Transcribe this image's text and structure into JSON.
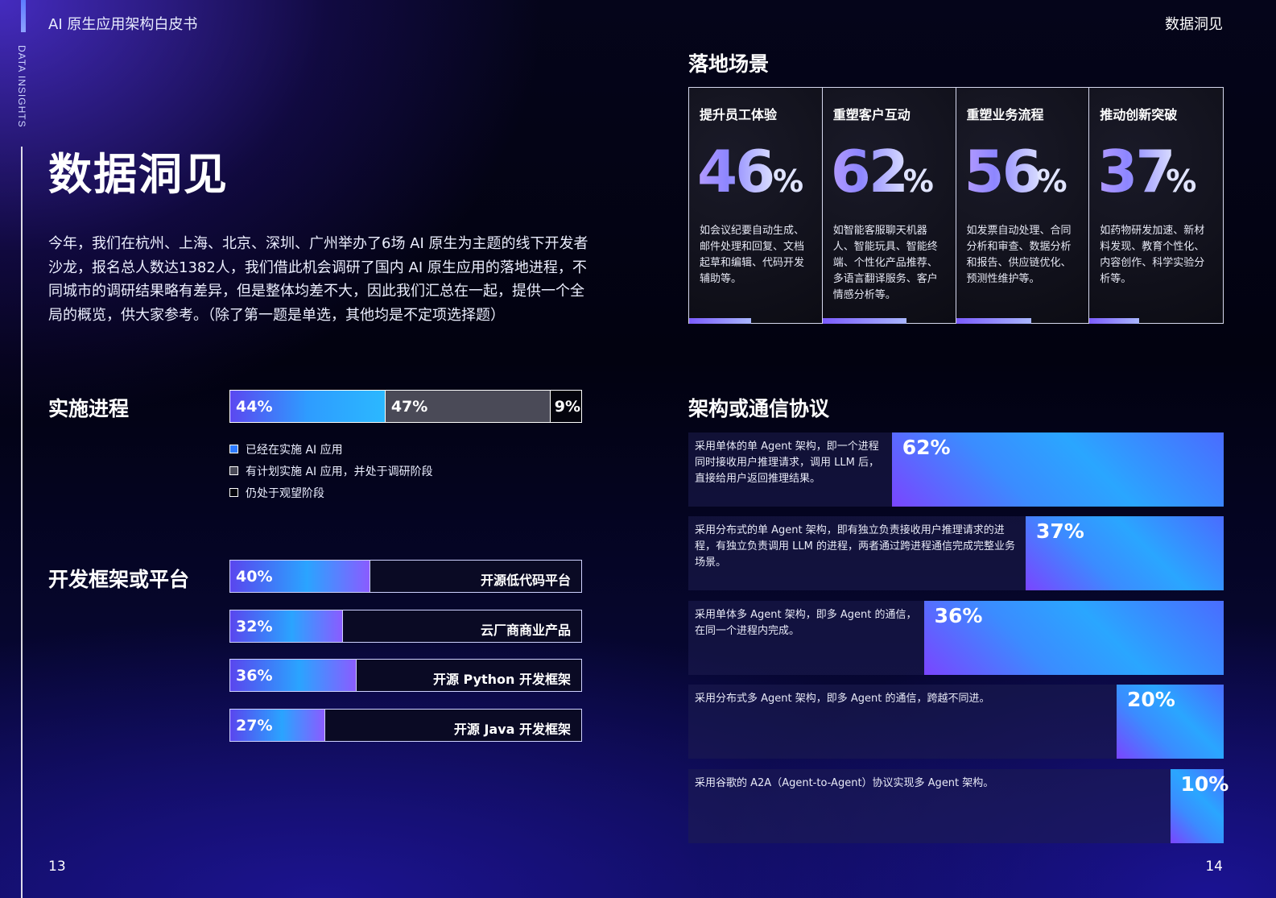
{
  "header": {
    "doc_title": "AI 原生应用架构白皮书",
    "section_right": "数据洞见",
    "side_label": "DATA INSIGHTS"
  },
  "left": {
    "title": "数据洞见",
    "intro": "今年，我们在杭州、上海、北京、深圳、广州举办了6场 AI 原生为主题的线下开发者沙龙，报名总人数达1382人，我们借此机会调研了国内 AI 原生应用的落地进程，不同城市的调研结果略有差异，但是整体均差不大，因此我们汇总在一起，提供一个全局的概览，供大家参考。（除了第一题是单选，其他均是不定项选择题）",
    "progress": {
      "title": "实施进程",
      "segments": [
        {
          "label": "44%",
          "value": 44,
          "legend": "已经在实施 AI 应用",
          "color": "#2e7bff"
        },
        {
          "label": "47%",
          "value": 47,
          "legend": "有计划实施 AI 应用，并处于调研阶段",
          "color": "#4a4a57"
        },
        {
          "label": "9%",
          "value": 9,
          "legend": "仍处于观望阶段",
          "color": "#04040d"
        }
      ]
    },
    "frameworks": {
      "title": "开发框架或平台",
      "items": [
        {
          "pct": "40%",
          "value": 40,
          "label": "开源低代码平台"
        },
        {
          "pct": "32%",
          "value": 32,
          "label": "云厂商商业产品"
        },
        {
          "pct": "36%",
          "value": 36,
          "label": "开源 Python 开发框架"
        },
        {
          "pct": "27%",
          "value": 27,
          "label": "开源 Java 开发框架"
        }
      ]
    },
    "page_number": "13"
  },
  "right": {
    "scenarios": {
      "title": "落地场景",
      "cards": [
        {
          "title": "提升员工体验",
          "number": "46",
          "unit": "%",
          "desc": "如会议纪要自动生成、邮件处理和回复、文档起草和编辑、代码开发辅助等。"
        },
        {
          "title": "重塑客户互动",
          "number": "62",
          "unit": "%",
          "desc": "如智能客服聊天机器人、智能玩具、智能终端、个性化产品推荐、多语言翻译服务、客户情感分析等。"
        },
        {
          "title": "重塑业务流程",
          "number": "56",
          "unit": "%",
          "desc": "如发票自动处理、合同分析和审查、数据分析和报告、供应链优化、预测性维护等。"
        },
        {
          "title": "推动创新突破",
          "number": "37",
          "unit": "%",
          "desc": "如药物研发加速、新材料发现、教育个性化、内容创作、科学实验分析等。"
        }
      ]
    },
    "protocols": {
      "title": "架构或通信协议",
      "items": [
        {
          "desc": "采用单体的单 Agent 架构，即一个进程\n同时接收用户推理请求，调用 LLM 后，\n直接给用户返回推理结果。",
          "pct": "62%",
          "value": 62
        },
        {
          "desc": "采用分布式的单 Agent 架构，即有独立负责接收用户推理请求的进\n程，有独立负责调用 LLM 的进程，两者通过跨进程通信完成完整业务\n场景。",
          "pct": "37%",
          "value": 37
        },
        {
          "desc": "采用单体多 Agent 架构，即多 Agent 的通信，\n在同一个进程内完成。",
          "pct": "36%",
          "value": 36
        },
        {
          "desc": "采用分布式多 Agent 架构，即多 Agent 的通信，跨越不同进。",
          "pct": "20%",
          "value": 20
        },
        {
          "desc": "采用谷歌的 A2A（Agent-to-Agent）协议实现多 Agent 架构。",
          "pct": "10%",
          "value": 10
        }
      ]
    },
    "page_number": "14"
  }
}
